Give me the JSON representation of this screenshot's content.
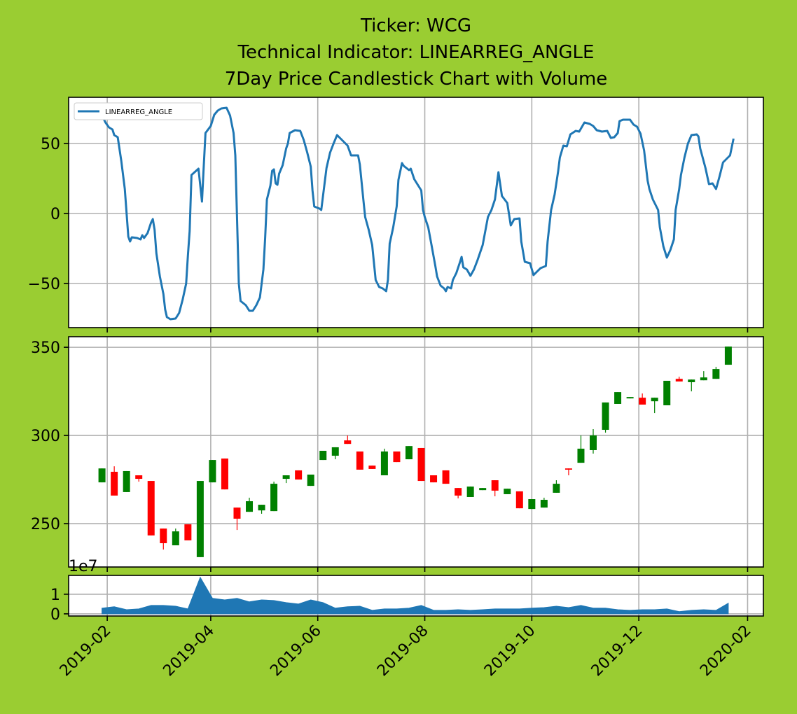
{
  "chart_data": [
    {
      "type": "line",
      "title": [
        "Ticker: WCG",
        "Technical Indicator: LINEARREG_ANGLE",
        "7Day Price Candlestick Chart with Volume"
      ],
      "series": [
        {
          "name": "LINEARREG_ANGLE",
          "color": "#1f77b4",
          "x": [
            17925,
            17927,
            17929,
            17931,
            17932,
            17934,
            17936,
            17938,
            17940,
            17941,
            17942,
            17945,
            17947,
            17948,
            17949,
            17951,
            17953,
            17954,
            17955,
            17956,
            17958,
            17960,
            17961,
            17962,
            17964,
            17967,
            17969,
            17971,
            17973,
            17974,
            17975,
            17976,
            17980,
            17982,
            17983,
            17984,
            17987,
            17989,
            17991,
            17993,
            17996,
            17998,
            18000,
            18001,
            18003,
            18004,
            18007,
            18009,
            18011,
            18013,
            18015,
            18017,
            18018,
            18019,
            18021,
            18022,
            18023,
            18024,
            18025,
            18026,
            18028,
            18030,
            18031,
            18032,
            18035,
            18038,
            18040,
            18042,
            18044,
            18045,
            18046,
            18049,
            18050,
            18052,
            18053,
            18055,
            18057,
            18059,
            18061,
            18063,
            18065,
            18067,
            18071,
            18072,
            18074,
            18075,
            18077,
            18079,
            18081,
            18083,
            18085,
            18087,
            18088,
            18089,
            18091,
            18093,
            18094,
            18096,
            18097,
            18100,
            18101,
            18103,
            18105,
            18107,
            18108,
            18109,
            18111,
            18113,
            18115,
            18116,
            18118,
            18120,
            18121,
            18122,
            18124,
            18125,
            18127,
            18129,
            18130,
            18131,
            18133,
            18135,
            18137,
            18139,
            18142,
            18145,
            18147,
            18149,
            18151,
            18153,
            18156,
            18158,
            18160,
            18163,
            18164,
            18166,
            18169,
            18171,
            18173,
            18175,
            18178,
            18179,
            18181,
            18183,
            18185,
            18186,
            18188,
            18190,
            18192,
            18195,
            18197,
            18200,
            18203,
            18205,
            18207,
            18210,
            18213,
            18215,
            18217,
            18219,
            18220,
            18222,
            18226,
            18228,
            18230,
            18232,
            18234,
            18236,
            18237,
            18239,
            18240,
            18242,
            18243,
            18245,
            18247,
            18249,
            18251,
            18252,
            18254,
            18255,
            18257,
            18259,
            18261,
            18264,
            18265,
            18266,
            18269,
            18271,
            18273,
            18275,
            18277,
            18279,
            18283,
            18285
          ],
          "values": [
            70,
            65,
            61.5,
            60,
            56,
            54.5,
            37.5,
            17.5,
            -16.5,
            -20,
            -17,
            -17.5,
            -18.5,
            -15.5,
            -17.5,
            -14,
            -6.5,
            -4,
            -11.5,
            -28.5,
            -45,
            -57.5,
            -68.5,
            -74,
            -75.5,
            -75,
            -71,
            -61.5,
            -50,
            -30,
            -12.5,
            27.5,
            32,
            8.5,
            33.5,
            57.5,
            62.5,
            70.5,
            73.5,
            75,
            75.5,
            70,
            57.5,
            41.5,
            -50,
            -62.5,
            -65.5,
            -69.5,
            -69.5,
            -65.5,
            -60,
            -40,
            -17.5,
            10,
            20,
            30.5,
            31.5,
            21.5,
            20.5,
            28.5,
            34.5,
            46.5,
            50,
            57.5,
            59.5,
            59,
            52.5,
            43.5,
            33.5,
            16.5,
            5,
            3.5,
            2.5,
            22.5,
            32.5,
            43.5,
            50,
            56,
            53.5,
            51,
            48.5,
            41.5,
            41.5,
            35,
            10,
            -2.5,
            -11.5,
            -22.5,
            -47.5,
            -52.5,
            -53.5,
            -55.5,
            -47.5,
            -21.5,
            -10,
            5,
            24,
            36,
            34,
            31,
            32,
            24.5,
            20.5,
            16.5,
            2.5,
            -2.5,
            -10,
            -23.5,
            -37.5,
            -45,
            -51.5,
            -53.5,
            -55.5,
            -52.5,
            -53.5,
            -47.5,
            -42.5,
            -35,
            -31,
            -38.5,
            -40,
            -44.5,
            -40,
            -33.5,
            -22.5,
            -2.5,
            2.5,
            10,
            29.5,
            12.5,
            7.5,
            -8.5,
            -4,
            -3.5,
            -20,
            -34.5,
            -35.5,
            -44,
            -41.5,
            -39,
            -37.5,
            -20,
            2.5,
            13.5,
            30,
            40,
            48.5,
            48,
            56.5,
            59,
            58.5,
            65,
            64,
            62.5,
            59.5,
            58.5,
            59,
            54,
            54.5,
            57.5,
            66,
            67,
            67,
            63.5,
            62,
            57,
            45,
            23.5,
            17.5,
            10,
            7.5,
            2.5,
            -10,
            -23.5,
            -31.5,
            -26,
            -18.5,
            2.5,
            17.5,
            27.5,
            40,
            50,
            56,
            56.5,
            55,
            46.5,
            32.5,
            21,
            21.5,
            17.5,
            26.5,
            36.5,
            41.5,
            53.5
          ]
        }
      ],
      "ylim": [
        -81.5,
        83
      ],
      "yticks": [
        {
          "value": -50,
          "label": "−50"
        },
        0,
        50
      ],
      "grid": true,
      "legend": "upper left"
    },
    {
      "type": "candlestick",
      "x": [
        17925,
        17932,
        17939,
        17946,
        17953,
        17960,
        17967,
        17974,
        17981,
        17988,
        17995,
        18002,
        18009,
        18016,
        18023,
        18030,
        18037,
        18044,
        18051,
        18058,
        18065,
        18072,
        18079,
        18086,
        18093,
        18100,
        18107,
        18114,
        18121,
        18128,
        18135,
        18142,
        18149,
        18156,
        18163,
        18170,
        18177,
        18184,
        18191,
        18198,
        18205,
        18212,
        18219,
        18226,
        18233,
        18240,
        18247,
        18254,
        18261,
        18268,
        18275,
        18282
      ],
      "open": [
        273.4,
        279.4,
        267.9,
        277.4,
        274.2,
        247.2,
        237.7,
        249.6,
        231.0,
        273.4,
        286.9,
        259.1,
        256.7,
        257.5,
        257.1,
        275.4,
        280.2,
        271.4,
        286.1,
        288.5,
        297.2,
        290.9,
        282.9,
        277.4,
        290.9,
        286.5,
        292.9,
        277.4,
        280.2,
        270.2,
        265.1,
        269.0,
        274.6,
        266.7,
        268.3,
        258.3,
        259.1,
        267.5,
        281.3,
        284.5,
        291.7,
        303.2,
        317.9,
        321.0,
        321.4,
        319.4,
        317.1,
        332.1,
        330.2,
        331.3,
        332.1,
        340.1
      ],
      "high": [
        281.3,
        282.5,
        279.8,
        277.4,
        274.2,
        247.2,
        247.2,
        249.6,
        274.2,
        286.1,
        286.9,
        259.1,
        264.7,
        260.7,
        273.8,
        277.4,
        280.2,
        277.8,
        291.3,
        293.3,
        300.0,
        290.9,
        282.9,
        292.5,
        290.9,
        294.0,
        292.9,
        277.4,
        280.2,
        270.2,
        271.0,
        270.2,
        274.6,
        269.8,
        268.3,
        263.9,
        264.7,
        274.6,
        281.3,
        300.0,
        303.6,
        318.7,
        324.6,
        321.8,
        323.8,
        321.4,
        331.0,
        333.3,
        331.7,
        336.5,
        338.9,
        350.4
      ],
      "low": [
        273.4,
        265.9,
        267.9,
        273.8,
        243.3,
        235.3,
        237.7,
        240.5,
        231.0,
        273.4,
        269.4,
        246.4,
        256.7,
        255.6,
        257.1,
        273.0,
        275.0,
        271.4,
        286.1,
        286.5,
        295.2,
        280.6,
        281.0,
        277.4,
        284.9,
        286.5,
        274.2,
        273.4,
        272.6,
        264.3,
        265.1,
        269.0,
        265.5,
        266.7,
        258.7,
        258.3,
        259.1,
        267.5,
        277.4,
        284.5,
        289.7,
        301.6,
        317.9,
        321.0,
        317.5,
        312.7,
        317.1,
        330.6,
        325.0,
        331.3,
        332.1,
        340.1
      ],
      "close": [
        281.3,
        265.9,
        279.8,
        275.4,
        243.3,
        238.9,
        245.6,
        240.5,
        274.2,
        286.1,
        269.4,
        252.8,
        262.7,
        260.7,
        272.6,
        277.4,
        275.0,
        277.8,
        291.3,
        293.3,
        295.2,
        280.6,
        281.0,
        290.9,
        284.9,
        294.0,
        274.2,
        273.4,
        272.6,
        265.9,
        271.0,
        270.2,
        268.7,
        269.8,
        258.7,
        263.9,
        263.5,
        272.6,
        280.6,
        292.5,
        300.0,
        318.7,
        324.6,
        321.8,
        317.5,
        321.4,
        331.0,
        330.6,
        331.7,
        332.9,
        337.7,
        350.4
      ],
      "up_color": "green",
      "down_color": "red",
      "ylim": [
        225.4,
        356
      ],
      "yticks": [
        250,
        300,
        350
      ],
      "grid": true
    },
    {
      "type": "area",
      "x": [
        17925,
        17932,
        17939,
        17946,
        17953,
        17960,
        17967,
        17974,
        17981,
        17988,
        17995,
        18002,
        18009,
        18016,
        18023,
        18030,
        18037,
        18044,
        18051,
        18058,
        18065,
        18072,
        18079,
        18086,
        18093,
        18100,
        18107,
        18114,
        18121,
        18128,
        18135,
        18142,
        18149,
        18156,
        18163,
        18170,
        18177,
        18184,
        18191,
        18198,
        18205,
        18212,
        18219,
        18226,
        18233,
        18240,
        18247,
        18254,
        18261,
        18268,
        18275,
        18282
      ],
      "values": [
        2900000,
        3600000,
        2100000,
        2500000,
        4300000,
        4300000,
        3900000,
        2500000,
        18600000,
        7900000,
        7100000,
        7900000,
        6100000,
        7100000,
        6800000,
        5700000,
        5000000,
        7100000,
        5700000,
        2900000,
        3600000,
        3900000,
        1800000,
        2500000,
        2500000,
        2900000,
        4300000,
        1800000,
        1800000,
        2100000,
        1800000,
        2100000,
        2500000,
        2500000,
        2500000,
        2900000,
        3200000,
        3900000,
        3200000,
        4300000,
        2900000,
        2900000,
        2100000,
        1800000,
        2100000,
        2100000,
        2500000,
        1100000,
        1800000,
        2100000,
        1800000,
        5400000
      ],
      "color": "#1f77b4",
      "offset_label": "1e7",
      "ylim": [
        -1100000,
        19600000
      ],
      "yticks": [
        0,
        {
          "value": 10000000,
          "label": "1"
        }
      ],
      "xlim": [
        17906,
        18302
      ],
      "xticks": [
        {
          "value": 17928,
          "label": "2019-02"
        },
        {
          "value": 17987,
          "label": "2019-04"
        },
        {
          "value": 18048,
          "label": "2019-06"
        },
        {
          "value": 18109,
          "label": "2019-08"
        },
        {
          "value": 18170,
          "label": "2019-10"
        },
        {
          "value": 18231,
          "label": "2019-12"
        },
        {
          "value": 18293,
          "label": "2020-02"
        }
      ],
      "grid": true
    }
  ]
}
